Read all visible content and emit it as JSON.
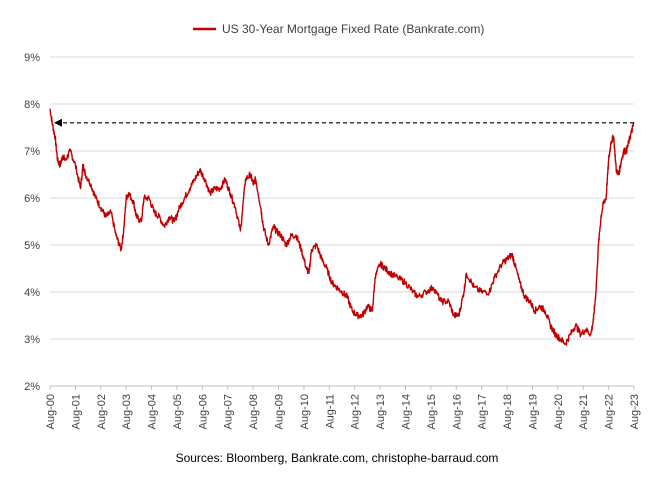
{
  "chart_data": {
    "type": "line",
    "title": "",
    "xlabel": "",
    "ylabel": "",
    "ylim": [
      2,
      9
    ],
    "y_ticks": [
      "2%",
      "3%",
      "4%",
      "5%",
      "6%",
      "7%",
      "8%",
      "9%"
    ],
    "x_ticks": [
      "Aug-00",
      "Aug-01",
      "Aug-02",
      "Aug-03",
      "Aug-04",
      "Aug-05",
      "Aug-06",
      "Aug-07",
      "Aug-08",
      "Aug-09",
      "Aug-10",
      "Aug-11",
      "Aug-12",
      "Aug-13",
      "Aug-14",
      "Aug-15",
      "Aug-16",
      "Aug-17",
      "Aug-18",
      "Aug-19",
      "Aug-20",
      "Aug-21",
      "Aug-22",
      "Aug-23"
    ],
    "xlim": [
      2000.6,
      2023.6
    ],
    "legend_position": "top-center",
    "grid": "horizontal",
    "series": [
      {
        "name": "US 30-Year Mortgage Fixed Rate (Bankrate.com)",
        "color": "#c00000",
        "x": [
          2000.6,
          2000.7,
          2000.8,
          2000.9,
          2001.0,
          2001.1,
          2001.2,
          2001.4,
          2001.6,
          2001.8,
          2001.9,
          2002.0,
          2002.2,
          2002.4,
          2002.6,
          2002.8,
          2003.0,
          2003.2,
          2003.4,
          2003.5,
          2003.6,
          2003.7,
          2003.9,
          2004.0,
          2004.2,
          2004.3,
          2004.5,
          2004.7,
          2004.9,
          2005.1,
          2005.3,
          2005.5,
          2005.7,
          2005.9,
          2006.1,
          2006.3,
          2006.5,
          2006.7,
          2006.9,
          2007.1,
          2007.3,
          2007.5,
          2007.7,
          2007.9,
          2008.1,
          2008.3,
          2008.5,
          2008.6,
          2008.7,
          2008.9,
          2009.0,
          2009.2,
          2009.4,
          2009.5,
          2009.7,
          2009.9,
          2010.1,
          2010.3,
          2010.5,
          2010.7,
          2010.8,
          2010.9,
          2011.1,
          2011.3,
          2011.5,
          2011.7,
          2011.9,
          2012.1,
          2012.3,
          2012.5,
          2012.7,
          2012.9,
          2013.1,
          2013.3,
          2013.4,
          2013.6,
          2013.8,
          2014.0,
          2014.3,
          2014.6,
          2014.9,
          2015.1,
          2015.4,
          2015.7,
          2016.0,
          2016.3,
          2016.5,
          2016.7,
          2016.9,
          2017.0,
          2017.3,
          2017.6,
          2017.9,
          2018.1,
          2018.4,
          2018.6,
          2018.8,
          2018.9,
          2019.1,
          2019.3,
          2019.5,
          2019.7,
          2019.9,
          2020.1,
          2020.3,
          2020.5,
          2020.7,
          2020.9,
          2021.1,
          2021.3,
          2021.5,
          2021.7,
          2021.9,
          2022.0,
          2022.1,
          2022.2,
          2022.3,
          2022.4,
          2022.5,
          2022.6,
          2022.7,
          2022.8,
          2022.9,
          2023.0,
          2023.1,
          2023.2,
          2023.3,
          2023.4,
          2023.5,
          2023.6
        ],
        "values": [
          7.9,
          7.55,
          7.3,
          6.8,
          6.7,
          6.9,
          6.8,
          7.0,
          6.7,
          6.2,
          6.7,
          6.5,
          6.3,
          6.0,
          5.8,
          5.6,
          5.7,
          5.2,
          4.9,
          5.3,
          6.0,
          6.1,
          5.9,
          5.6,
          5.5,
          6.0,
          6.0,
          5.7,
          5.6,
          5.4,
          5.6,
          5.5,
          5.8,
          6.0,
          6.2,
          6.4,
          6.6,
          6.4,
          6.1,
          6.2,
          6.2,
          6.4,
          6.1,
          5.8,
          5.3,
          6.4,
          6.5,
          6.3,
          6.4,
          5.8,
          5.4,
          5.0,
          5.4,
          5.3,
          5.2,
          5.0,
          5.2,
          5.2,
          4.9,
          4.5,
          4.4,
          4.9,
          5.0,
          4.7,
          4.5,
          4.2,
          4.1,
          4.0,
          3.9,
          3.6,
          3.5,
          3.5,
          3.7,
          3.6,
          4.3,
          4.6,
          4.5,
          4.4,
          4.3,
          4.2,
          4.0,
          3.9,
          4.0,
          4.1,
          3.8,
          3.8,
          3.5,
          3.5,
          4.0,
          4.4,
          4.1,
          4.0,
          4.0,
          4.3,
          4.6,
          4.7,
          4.8,
          4.6,
          4.2,
          3.9,
          3.8,
          3.6,
          3.7,
          3.6,
          3.3,
          3.1,
          3.0,
          2.9,
          3.1,
          3.3,
          3.1,
          3.2,
          3.1,
          3.4,
          4.0,
          5.0,
          5.6,
          5.9,
          6.0,
          6.8,
          7.2,
          7.3,
          6.6,
          6.5,
          6.8,
          7.0,
          7.0,
          7.2,
          7.4,
          7.6
        ],
        "annotation": {
          "from_x": 2023.6,
          "to_x": 2000.6,
          "y": 7.6,
          "style": "dashed-arrow"
        }
      }
    ]
  },
  "legend": {
    "label": "US 30-Year Mortgage Fixed Rate (Bankrate.com)"
  },
  "source": "Sources: Bloomberg, Bankrate.com, christophe-barraud.com"
}
